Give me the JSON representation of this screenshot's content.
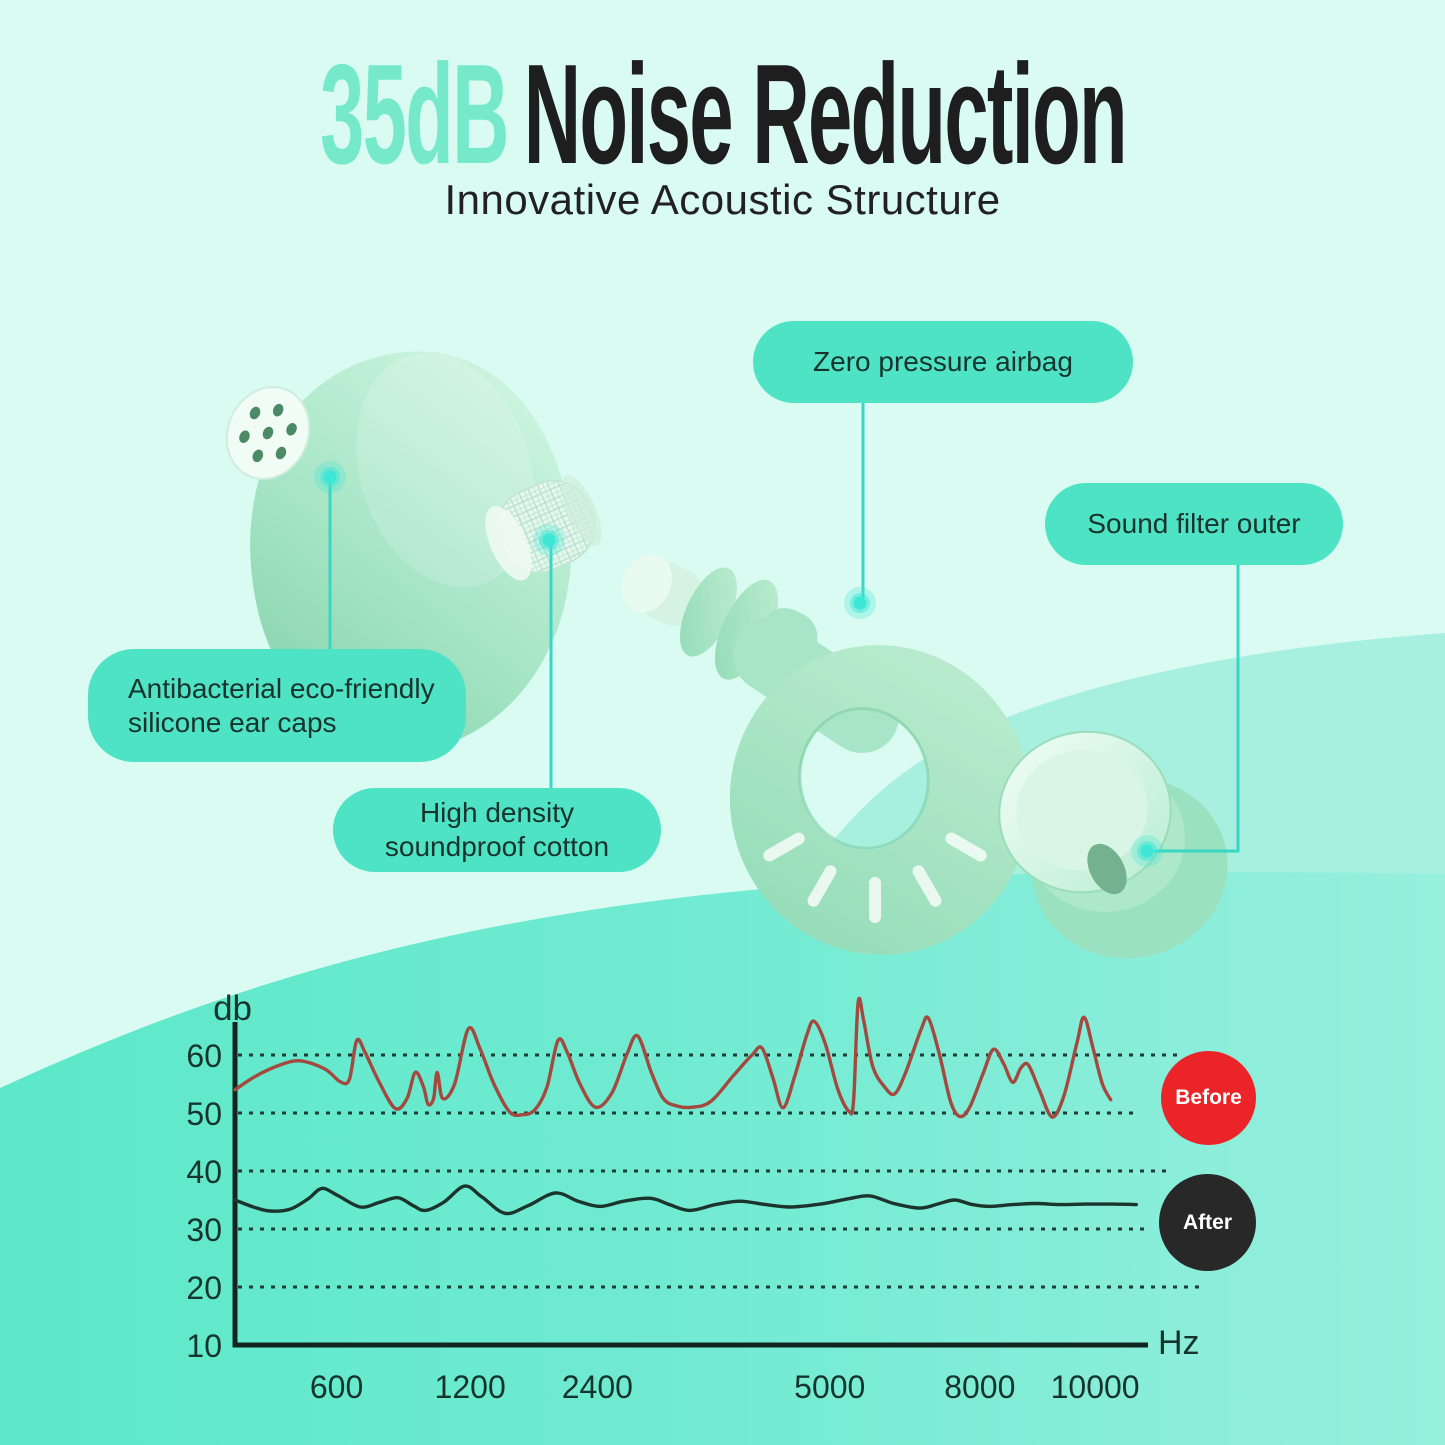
{
  "page": {
    "bg_top": "#d9fbf2",
    "wave_mid": "#a7f0e0",
    "wave_bottom_left": "#5ce8c9",
    "wave_bottom_mid": "#72ebd2",
    "wave_bottom_right": "#98efde",
    "accent": "#4fe3c6"
  },
  "title": {
    "highlight": "35dB",
    "rest": "Noise Reduction",
    "subtitle": "Innovative Acoustic Structure",
    "highlight_color": "#76e9cb",
    "text_color": "#1e1e1e"
  },
  "callouts": {
    "pill_color": "#4fe3c6",
    "text_color": "#17332c",
    "airbag": {
      "label": "Zero pressure airbag"
    },
    "filter": {
      "label": "Sound filter outer"
    },
    "ear_caps": {
      "line1": "Antibacterial eco-friendly",
      "line2": "silicone ear caps"
    },
    "cotton": {
      "line1": "High density",
      "line2": "soundproof cotton"
    }
  },
  "chart_data": {
    "type": "line",
    "title": "",
    "xlabel": "Hz",
    "ylabel": "db",
    "ylim": [
      10,
      70
    ],
    "y_ticks": [
      60,
      50,
      40,
      30,
      20,
      10
    ],
    "grid_db": [
      60,
      50,
      40,
      30,
      20
    ],
    "grid_style": "dotted",
    "legend_position": "right",
    "x_ticks": [
      {
        "label": "600",
        "f": 0.111
      },
      {
        "label": "1200",
        "f": 0.257
      },
      {
        "label": "2400",
        "f": 0.396
      },
      {
        "label": "5000",
        "f": 0.65
      },
      {
        "label": "8000",
        "f": 0.814
      },
      {
        "label": "10000",
        "f": 0.94
      }
    ],
    "series": [
      {
        "name": "Before",
        "line_color": "#a3493f",
        "badge_color": "#ea2428",
        "points": [
          [
            0,
            54
          ],
          [
            0.022,
            56.3
          ],
          [
            0.048,
            58.2
          ],
          [
            0.071,
            59
          ],
          [
            0.098,
            57.6
          ],
          [
            0.115,
            55.4
          ],
          [
            0.125,
            55.8
          ],
          [
            0.133,
            62.5
          ],
          [
            0.142,
            60.5
          ],
          [
            0.157,
            55.5
          ],
          [
            0.175,
            50.8
          ],
          [
            0.188,
            52.5
          ],
          [
            0.197,
            57
          ],
          [
            0.206,
            54.5
          ],
          [
            0.211,
            51.5
          ],
          [
            0.217,
            52.5
          ],
          [
            0.221,
            57
          ],
          [
            0.227,
            52.5
          ],
          [
            0.24,
            55
          ],
          [
            0.255,
            64.5
          ],
          [
            0.268,
            61
          ],
          [
            0.283,
            55
          ],
          [
            0.3,
            50.2
          ],
          [
            0.314,
            49.7
          ],
          [
            0.328,
            50.6
          ],
          [
            0.341,
            54.5
          ],
          [
            0.353,
            62.5
          ],
          [
            0.363,
            60.5
          ],
          [
            0.377,
            55
          ],
          [
            0.394,
            51
          ],
          [
            0.412,
            53.5
          ],
          [
            0.428,
            60
          ],
          [
            0.44,
            63.3
          ],
          [
            0.455,
            57
          ],
          [
            0.468,
            52.5
          ],
          [
            0.483,
            51.2
          ],
          [
            0.5,
            51
          ],
          [
            0.52,
            52
          ],
          [
            0.545,
            56.5
          ],
          [
            0.565,
            60
          ],
          [
            0.576,
            61.2
          ],
          [
            0.588,
            56
          ],
          [
            0.599,
            50.9
          ],
          [
            0.612,
            56.5
          ],
          [
            0.625,
            63.5
          ],
          [
            0.633,
            65.8
          ],
          [
            0.645,
            62
          ],
          [
            0.659,
            54
          ],
          [
            0.671,
            50.3
          ],
          [
            0.676,
            52
          ],
          [
            0.681,
            69
          ],
          [
            0.687,
            66
          ],
          [
            0.697,
            58
          ],
          [
            0.71,
            54.5
          ],
          [
            0.721,
            53.3
          ],
          [
            0.733,
            57
          ],
          [
            0.75,
            64.5
          ],
          [
            0.758,
            66.3
          ],
          [
            0.77,
            60
          ],
          [
            0.782,
            52
          ],
          [
            0.792,
            49.4
          ],
          [
            0.803,
            51
          ],
          [
            0.818,
            57
          ],
          [
            0.829,
            61
          ],
          [
            0.84,
            58.5
          ],
          [
            0.85,
            55.3
          ],
          [
            0.859,
            57.8
          ],
          [
            0.867,
            58.3
          ],
          [
            0.879,
            54
          ],
          [
            0.893,
            49.3
          ],
          [
            0.906,
            53
          ],
          [
            0.92,
            62
          ],
          [
            0.928,
            66.5
          ],
          [
            0.938,
            61
          ],
          [
            0.948,
            55
          ],
          [
            0.957,
            52.3
          ]
        ]
      },
      {
        "name": "After",
        "line_color": "#1b352d",
        "badge_color": "#282828",
        "points": [
          [
            0,
            35
          ],
          [
            0.02,
            33.8
          ],
          [
            0.038,
            33.1
          ],
          [
            0.06,
            33.4
          ],
          [
            0.08,
            35.2
          ],
          [
            0.095,
            37
          ],
          [
            0.112,
            35.8
          ],
          [
            0.137,
            33.8
          ],
          [
            0.158,
            34.6
          ],
          [
            0.178,
            35.4
          ],
          [
            0.195,
            34
          ],
          [
            0.208,
            33.2
          ],
          [
            0.228,
            34.6
          ],
          [
            0.251,
            37.4
          ],
          [
            0.27,
            35.5
          ],
          [
            0.295,
            32.7
          ],
          [
            0.32,
            34
          ],
          [
            0.35,
            36.2
          ],
          [
            0.375,
            34.8
          ],
          [
            0.399,
            33.9
          ],
          [
            0.425,
            34.8
          ],
          [
            0.454,
            35.3
          ],
          [
            0.475,
            34.2
          ],
          [
            0.497,
            33.2
          ],
          [
            0.525,
            34.2
          ],
          [
            0.552,
            34.8
          ],
          [
            0.58,
            34.2
          ],
          [
            0.607,
            33.8
          ],
          [
            0.64,
            34.3
          ],
          [
            0.67,
            35.2
          ],
          [
            0.694,
            35.7
          ],
          [
            0.72,
            34.4
          ],
          [
            0.749,
            33.6
          ],
          [
            0.77,
            34.4
          ],
          [
            0.787,
            35
          ],
          [
            0.806,
            34.2
          ],
          [
            0.825,
            33.9
          ],
          [
            0.85,
            34.2
          ],
          [
            0.875,
            34.4
          ],
          [
            0.902,
            34.2
          ],
          [
            0.93,
            34.3
          ],
          [
            0.96,
            34.3
          ],
          [
            0.985,
            34.2
          ]
        ]
      }
    ]
  }
}
